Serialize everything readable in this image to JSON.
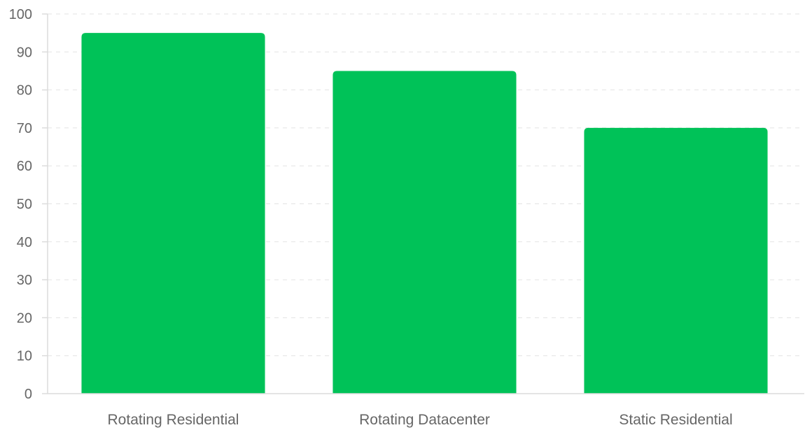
{
  "chart_data": {
    "type": "bar",
    "categories": [
      "Rotating Residential",
      "Rotating Datacenter",
      "Static Residential"
    ],
    "values": [
      95,
      85,
      70
    ],
    "title": "",
    "xlabel": "",
    "ylabel": "",
    "ylim": [
      0,
      100
    ],
    "yticks": [
      "0",
      "10",
      "20",
      "30",
      "40",
      "50",
      "60",
      "70",
      "80",
      "90",
      "100"
    ],
    "grid": true,
    "legend": "none",
    "bar_color": "#00c258"
  }
}
